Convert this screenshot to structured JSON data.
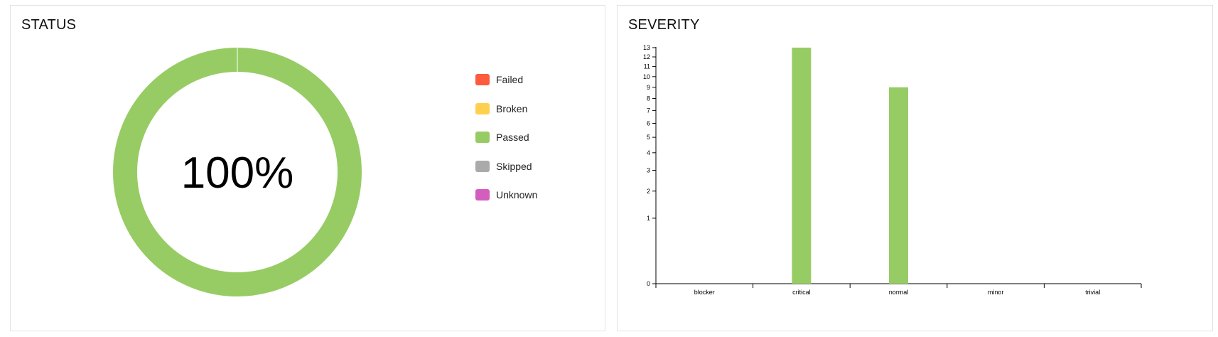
{
  "status": {
    "title": "STATUS",
    "center_label": "100%",
    "legend": [
      {
        "name": "Failed",
        "color": "#fd5a3e"
      },
      {
        "name": "Broken",
        "color": "#ffd050"
      },
      {
        "name": "Passed",
        "color": "#97cc64"
      },
      {
        "name": "Skipped",
        "color": "#aaaaaa"
      },
      {
        "name": "Unknown",
        "color": "#d35ebe"
      }
    ]
  },
  "severity": {
    "title": "SEVERITY"
  },
  "chart_data": [
    {
      "type": "pie",
      "title": "STATUS",
      "categories": [
        "Failed",
        "Broken",
        "Passed",
        "Skipped",
        "Unknown"
      ],
      "values": [
        0,
        0,
        22,
        0,
        0
      ],
      "colors": [
        "#fd5a3e",
        "#ffd050",
        "#97cc64",
        "#aaaaaa",
        "#d35ebe"
      ],
      "center_label": "100%",
      "legend": "right"
    },
    {
      "type": "bar",
      "title": "SEVERITY",
      "categories": [
        "blocker",
        "critical",
        "normal",
        "minor",
        "trivial"
      ],
      "values": [
        0,
        13,
        9,
        0,
        0
      ],
      "color": "#97cc64",
      "yscale": "sqrt",
      "ylim": [
        0,
        13
      ],
      "yticks": [
        0,
        1,
        2,
        3,
        4,
        5,
        6,
        7,
        8,
        9,
        10,
        11,
        12,
        13
      ],
      "xlabel": "",
      "ylabel": ""
    }
  ]
}
